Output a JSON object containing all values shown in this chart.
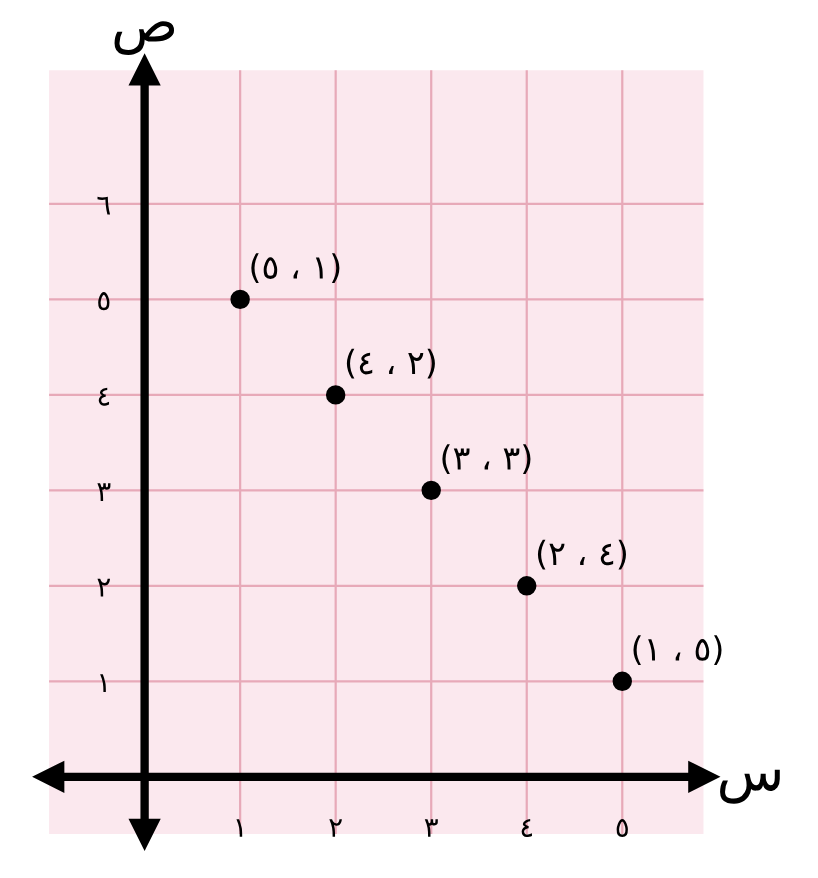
{
  "chart_data": {
    "type": "scatter",
    "xlabel": "س",
    "ylabel": "ص",
    "x": [
      1,
      2,
      3,
      4,
      5
    ],
    "series": [
      {
        "color": "#000000",
        "values": [
          5,
          4,
          3,
          2,
          1
        ],
        "value_labels": [
          "(٥ ، ١)",
          "(٤ ، ٢)",
          "(٣ ، ٣)",
          "(٢ ، ٤)",
          "(١ ، ٥)"
        ]
      }
    ],
    "xlim": [
      -1,
      5.85
    ],
    "ylim": [
      -0.6,
      7.4
    ],
    "xticks": [
      {
        "value": 1,
        "label": "١"
      },
      {
        "value": 2,
        "label": "٢"
      },
      {
        "value": 3,
        "label": "٣"
      },
      {
        "value": 4,
        "label": "٤"
      },
      {
        "value": 5,
        "label": "٥"
      }
    ],
    "yticks": [
      {
        "value": 1,
        "label": "١"
      },
      {
        "value": 2,
        "label": "٢"
      },
      {
        "value": 3,
        "label": "٣"
      },
      {
        "value": 4,
        "label": "٤"
      },
      {
        "value": 5,
        "label": "٥"
      },
      {
        "value": 6,
        "label": "٦"
      }
    ],
    "grid": true,
    "marker": "circle"
  }
}
